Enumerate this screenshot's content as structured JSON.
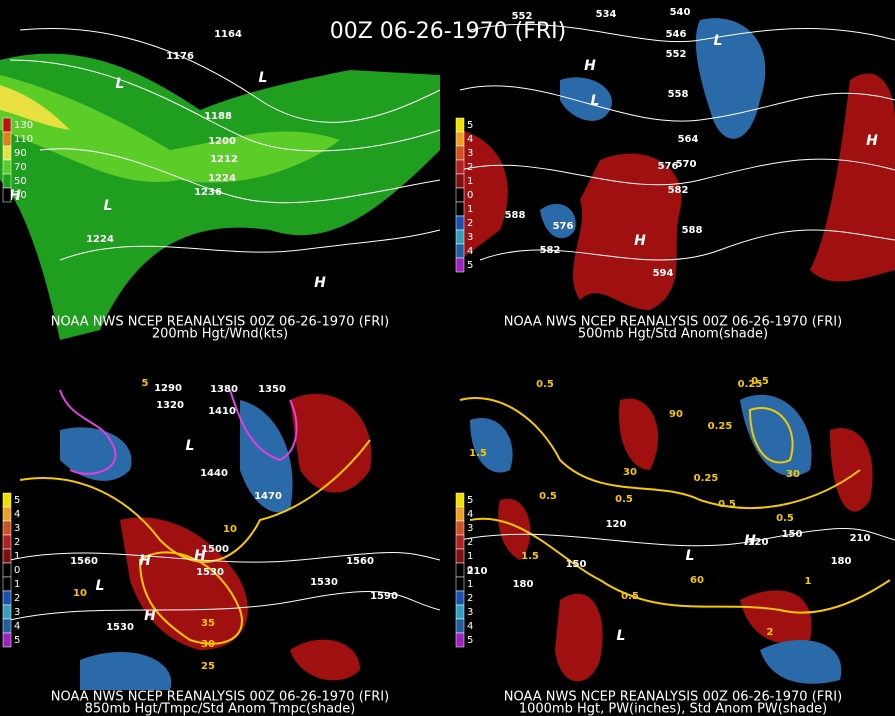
{
  "title": "00Z 06-26-1970 (FRI)",
  "panels": [
    {
      "caption": "NOAA NWS NCEP REANALYSIS 00Z 06-26-1970 (FRI)",
      "subtitle": "200mb Hgt/Wnd(kts)",
      "scale": [
        130,
        110,
        90,
        70,
        50,
        30
      ],
      "labels": [
        "1164",
        "1176",
        "1188",
        "1200",
        "1212",
        "1224",
        "1236",
        "1224",
        "L",
        "L",
        "L",
        "H",
        "H"
      ]
    },
    {
      "caption": "NOAA NWS NCEP REANALYSIS 00Z 06-26-1970 (FRI)",
      "subtitle": "500mb Hgt/Std Anom(shade)",
      "scale": [
        5,
        4,
        3,
        2,
        1,
        0,
        1,
        2,
        3,
        4,
        5
      ],
      "labels": [
        "552",
        "534",
        "540",
        "546",
        "552",
        "558",
        "564",
        "570",
        "576",
        "582",
        "588",
        "594",
        "588",
        "582",
        "576",
        "H",
        "L",
        "L",
        "H",
        "H"
      ]
    },
    {
      "caption": "NOAA NWS NCEP REANALYSIS 00Z 06-26-1970 (FRI)",
      "subtitle": "850mb Hgt/Tmpc/Std Anom Tmpc(shade)",
      "scale": [
        5,
        4,
        3,
        2,
        1,
        0,
        1,
        2,
        3,
        4,
        5
      ],
      "labels": [
        "1290",
        "1320",
        "1380",
        "1410",
        "1350",
        "1440",
        "1470",
        "1500",
        "1530",
        "1560",
        "1560",
        "1530",
        "1590",
        "1530",
        "35",
        "30",
        "25",
        "10",
        "10",
        "5",
        "L",
        "L",
        "H",
        "H",
        "H"
      ]
    },
    {
      "caption": "NOAA NWS NCEP REANALYSIS 00Z 06-26-1970 (FRI)",
      "subtitle": "1000mb Hgt, PW(inches), Std Anom PW(shade)",
      "scale": [
        5,
        4,
        3,
        2,
        1,
        0,
        1,
        2,
        3,
        4,
        5
      ],
      "labels": [
        "0.5",
        "0.25",
        "0.5",
        "1.5",
        "0.5",
        "0.5",
        "0.25",
        "0.25",
        "0.5",
        "0.5",
        "1.5",
        "150",
        "180",
        "120",
        "120",
        "150",
        "180",
        "210",
        "60",
        "0.5",
        "2",
        "1",
        "210",
        "30",
        "90",
        "30",
        "L",
        "H",
        "L"
      ]
    }
  ]
}
